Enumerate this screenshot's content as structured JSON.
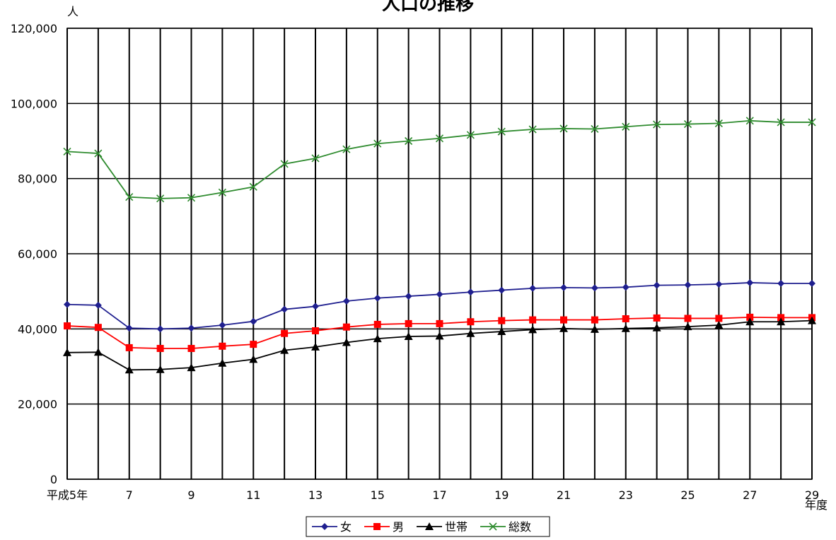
{
  "chart_data": {
    "type": "line",
    "title": "人口の推移",
    "ylabel": "人",
    "xlabel": "年度",
    "ylim": [
      0,
      120000
    ],
    "yticks": [
      0,
      20000,
      40000,
      60000,
      80000,
      100000,
      120000
    ],
    "ytick_labels": [
      "0",
      "20,000",
      "40,000",
      "60,000",
      "80,000",
      "100,000",
      "120,000"
    ],
    "x": [
      5,
      6,
      7,
      8,
      9,
      10,
      11,
      12,
      13,
      14,
      15,
      16,
      17,
      18,
      19,
      20,
      21,
      22,
      23,
      24,
      25,
      26,
      27,
      28,
      29
    ],
    "xtick_labels": [
      "平成5年",
      "",
      "7",
      "",
      "9",
      "",
      "11",
      "",
      "13",
      "",
      "15",
      "",
      "17",
      "",
      "19",
      "",
      "21",
      "",
      "23",
      "",
      "25",
      "",
      "27",
      "",
      "29"
    ],
    "grid": true,
    "legend_position": "bottom-center",
    "series": [
      {
        "name": "女",
        "color": "#1f1f8f",
        "marker": "diamond",
        "values": [
          46500,
          46300,
          40200,
          40000,
          40200,
          41000,
          42000,
          45200,
          46000,
          47400,
          48200,
          48700,
          49200,
          49800,
          50300,
          50800,
          51000,
          50900,
          51100,
          51600,
          51700,
          51900,
          52300,
          52100,
          52100
        ]
      },
      {
        "name": "男",
        "color": "#ff0000",
        "marker": "square",
        "values": [
          40800,
          40400,
          35000,
          34800,
          34800,
          35400,
          35900,
          38800,
          39500,
          40500,
          41200,
          41400,
          41400,
          41900,
          42200,
          42400,
          42400,
          42400,
          42700,
          42900,
          42800,
          42800,
          43100,
          43000,
          43000
        ]
      },
      {
        "name": "世帯",
        "color": "#000000",
        "marker": "triangle",
        "values": [
          33700,
          33800,
          29100,
          29200,
          29700,
          30900,
          31900,
          34300,
          35200,
          36400,
          37400,
          38000,
          38100,
          38800,
          39300,
          39800,
          40100,
          39900,
          40100,
          40300,
          40600,
          41000,
          41900,
          41900,
          42200
        ]
      },
      {
        "name": "総数",
        "color": "#2e8b2e",
        "marker": "x",
        "values": [
          87200,
          86700,
          75100,
          74700,
          74900,
          76300,
          77800,
          83900,
          85400,
          87800,
          89300,
          90000,
          90700,
          91600,
          92500,
          93100,
          93300,
          93200,
          93800,
          94400,
          94500,
          94700,
          95400,
          95000,
          95000
        ]
      }
    ]
  }
}
